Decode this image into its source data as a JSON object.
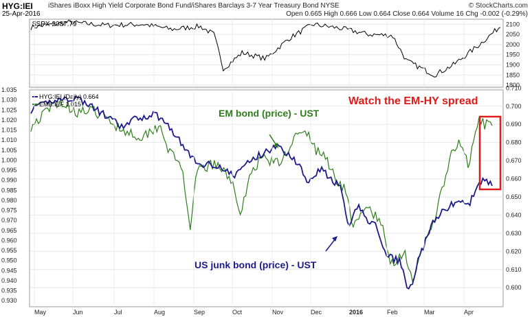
{
  "header": {
    "ticker": "HYG:IEI",
    "description": "iShares iBoxx High Yield Corporate Bond Fund/iShares Barclays 3-7 Year Treasury Bond",
    "exchange": "NYSE",
    "date": "25-Apr-2016",
    "quote": "Open 0.665  High 0.666  Low 0.664  Close 0.664  Volume 16  Chg -0.002 (-0.29%)",
    "logo": "© StockCharts.com"
  },
  "colors": {
    "hyg": "#1c1a8a",
    "emb": "#2e7d1a",
    "spx": "#000000",
    "highlight": "#e01b1b"
  },
  "chart_data": [
    {
      "type": "line",
      "series": [
        {
          "name": "$SPX",
          "last_label": "$SPX 2087.79"
        }
      ],
      "ylim": [
        1790,
        2125
      ],
      "yticks": [
        "2100",
        "2050",
        "2000",
        "1950",
        "1900",
        "1850",
        "1800"
      ]
    },
    {
      "type": "line",
      "x": [
        "May",
        "Jun",
        "Jul",
        "Aug",
        "Sep",
        "Oct",
        "Nov",
        "Dec",
        "2016",
        "Feb",
        "Mar",
        "Apr"
      ],
      "series": [
        {
          "name": "HYG:IEI (Daily)",
          "legend": "HYG:IEI (Daily) 0.664",
          "last": 0.664
        },
        {
          "name": "EMB:IEF",
          "legend": "EMB:IEF 1.015",
          "last": 1.015
        }
      ],
      "left_axis": {
        "ylim": [
          0.927,
          1.035
        ],
        "ticks": [
          "1.035",
          "1.030",
          "1.025",
          "1.020",
          "1.015",
          "1.010",
          "1.005",
          "1.000",
          "0.995",
          "0.990",
          "0.985",
          "0.980",
          "0.975",
          "0.970",
          "0.965",
          "0.960",
          "0.955",
          "0.950",
          "0.945",
          "0.940",
          "0.935",
          "0.930"
        ]
      },
      "right_axis": {
        "ylim": [
          0.5895,
          0.709
        ],
        "ticks": [
          "0.710",
          "0.700",
          "0.690",
          "0.680",
          "0.670",
          "0.660",
          "0.650",
          "0.640",
          "0.630",
          "0.620",
          "0.610",
          "0.600"
        ]
      },
      "annotations": {
        "em": "EM bond (price) - UST",
        "us": "US junk bond (price) - UST",
        "watch": "Watch the EM-HY spread"
      }
    }
  ]
}
